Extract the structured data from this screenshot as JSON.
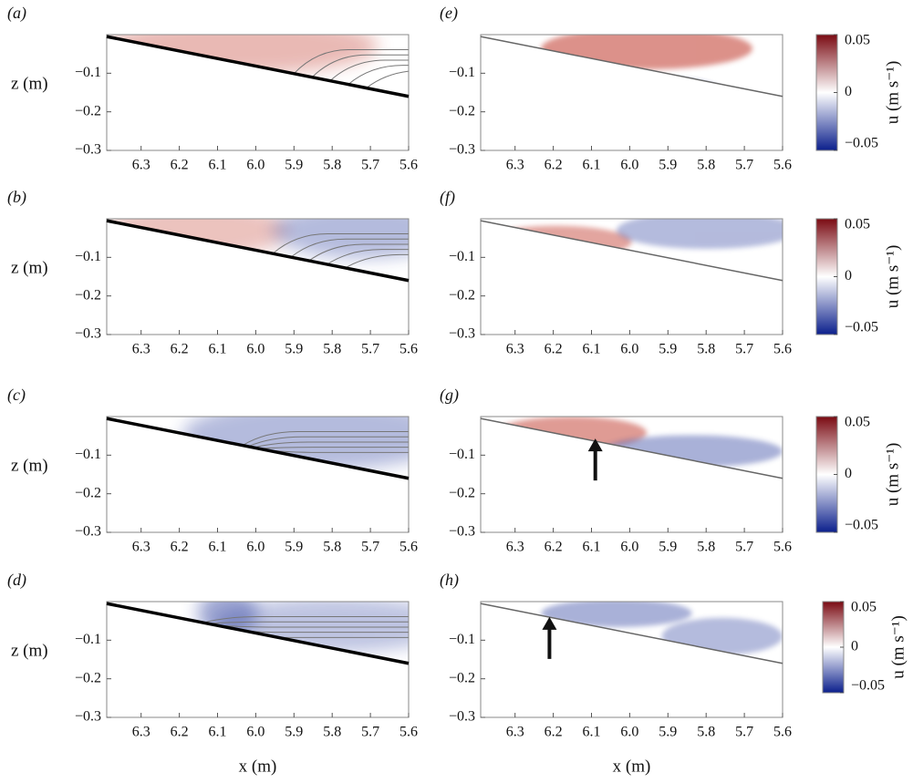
{
  "chart_data": [
    {
      "type": "field",
      "panel": "(a)",
      "ylabel": "z (m)",
      "xlim": [
        6.39,
        5.6
      ],
      "ylim": [
        -0.3,
        0
      ],
      "xticks": [
        6.3,
        6.2,
        6.1,
        {
          "value": 6,
          "label": "6.0"
        },
        5.9,
        5.8,
        5.7,
        5.6
      ],
      "yticks": [
        {
          "value": -0.3,
          "label": "−0.3"
        },
        {
          "value": -0.2,
          "label": "−0.2"
        },
        {
          "value": -0.1,
          "label": "−0.1"
        }
      ],
      "bed": {
        "x": [
          6.39,
          5.6
        ],
        "z": [
          -0.005,
          -0.16
        ],
        "color": "#000000"
      }
    },
    {
      "type": "field",
      "panel": "(b)",
      "ylabel": "z (m)",
      "xlim": [
        6.39,
        5.6
      ],
      "ylim": [
        -0.3,
        0
      ],
      "xticks": [
        6.3,
        6.2,
        6.1,
        {
          "value": 6,
          "label": "6.0"
        },
        5.9,
        5.8,
        5.7,
        5.6
      ],
      "yticks": [
        {
          "value": -0.3,
          "label": "−0.3"
        },
        {
          "value": -0.2,
          "label": "−0.2"
        },
        {
          "value": -0.1,
          "label": "−0.1"
        }
      ],
      "bed": {
        "x": [
          6.39,
          5.6
        ],
        "z": [
          -0.005,
          -0.16
        ],
        "color": "#000000"
      }
    },
    {
      "type": "field",
      "panel": "(c)",
      "ylabel": "z (m)",
      "xlim": [
        6.39,
        5.6
      ],
      "ylim": [
        -0.3,
        0
      ],
      "xticks": [
        6.3,
        6.2,
        6.1,
        {
          "value": 6,
          "label": "6.0"
        },
        5.9,
        5.8,
        5.7,
        5.6
      ],
      "yticks": [
        {
          "value": -0.3,
          "label": "−0.3"
        },
        {
          "value": -0.2,
          "label": "−0.2"
        },
        {
          "value": -0.1,
          "label": "−0.1"
        }
      ],
      "bed": {
        "x": [
          6.39,
          5.6
        ],
        "z": [
          -0.005,
          -0.16
        ],
        "color": "#000000"
      }
    },
    {
      "type": "field",
      "panel": "(d)",
      "ylabel": "z (m)",
      "xlabel": "x (m)",
      "xlim": [
        6.39,
        5.6
      ],
      "ylim": [
        -0.3,
        0
      ],
      "xticks": [
        6.3,
        6.2,
        6.1,
        {
          "value": 6,
          "label": "6.0"
        },
        5.9,
        5.8,
        5.7,
        5.6
      ],
      "yticks": [
        {
          "value": -0.3,
          "label": "−0.3"
        },
        {
          "value": -0.2,
          "label": "−0.2"
        },
        {
          "value": -0.1,
          "label": "−0.1"
        }
      ],
      "bed": {
        "x": [
          6.39,
          5.6
        ],
        "z": [
          -0.005,
          -0.16
        ],
        "color": "#000000"
      }
    },
    {
      "type": "field",
      "panel": "(e)",
      "xlim": [
        6.39,
        5.6
      ],
      "ylim": [
        -0.3,
        0
      ],
      "xticks": [
        6.3,
        6.2,
        6.1,
        {
          "value": 6,
          "label": "6.0"
        },
        5.9,
        5.8,
        5.7,
        5.6
      ],
      "yticks": [
        {
          "value": -0.3,
          "label": "−0.3"
        },
        {
          "value": -0.2,
          "label": "−0.2"
        },
        {
          "value": -0.1,
          "label": "−0.1"
        }
      ],
      "bed": {
        "x": [
          6.39,
          5.6
        ],
        "z": [
          -0.005,
          -0.16
        ],
        "color": "#666666"
      },
      "colorbar": {
        "label": "u (m s⁻¹)",
        "lim": [
          -0.05,
          0.05
        ],
        "ticks": [
          {
            "value": -0.05,
            "label": "−0.05"
          },
          0,
          0.05
        ],
        "colors": [
          "#0b1f8c",
          "#ffffff",
          "#7a0a12"
        ]
      }
    },
    {
      "type": "field",
      "panel": "(f)",
      "xlim": [
        6.39,
        5.6
      ],
      "ylim": [
        -0.3,
        0
      ],
      "xticks": [
        6.3,
        6.2,
        6.1,
        {
          "value": 6,
          "label": "6.0"
        },
        5.9,
        5.8,
        5.7,
        5.6
      ],
      "yticks": [
        {
          "value": -0.3,
          "label": "−0.3"
        },
        {
          "value": -0.2,
          "label": "−0.2"
        },
        {
          "value": -0.1,
          "label": "−0.1"
        }
      ],
      "bed": {
        "x": [
          6.39,
          5.6
        ],
        "z": [
          -0.005,
          -0.16
        ],
        "color": "#666666"
      },
      "colorbar": {
        "label": "u (m s⁻¹)",
        "lim": [
          -0.05,
          0.05
        ],
        "ticks": [
          {
            "value": -0.05,
            "label": "−0.05"
          },
          0,
          0.05
        ],
        "colors": [
          "#0b1f8c",
          "#ffffff",
          "#7a0a12"
        ]
      }
    },
    {
      "type": "field",
      "panel": "(g)",
      "xlim": [
        6.39,
        5.6
      ],
      "ylim": [
        -0.3,
        0
      ],
      "xticks": [
        6.3,
        6.2,
        6.1,
        {
          "value": 6,
          "label": "6.0"
        },
        5.9,
        5.8,
        5.7,
        5.6
      ],
      "yticks": [
        {
          "value": -0.3,
          "label": "−0.3"
        },
        {
          "value": -0.2,
          "label": "−0.2"
        },
        {
          "value": -0.1,
          "label": "−0.1"
        }
      ],
      "bed": {
        "x": [
          6.39,
          5.6
        ],
        "z": [
          -0.005,
          -0.16
        ],
        "color": "#666666"
      },
      "arrow": {
        "x": 6.09,
        "z": -0.057
      },
      "colorbar": {
        "label": "u (m s⁻¹)",
        "lim": [
          -0.05,
          0.05
        ],
        "ticks": [
          {
            "value": -0.05,
            "label": "−0.05"
          },
          0,
          0.05
        ],
        "colors": [
          "#0b1f8c",
          "#ffffff",
          "#7a0a12"
        ]
      }
    },
    {
      "type": "field",
      "panel": "(h)",
      "xlabel": "x (m)",
      "xlim": [
        6.39,
        5.6
      ],
      "ylim": [
        -0.3,
        0
      ],
      "xticks": [
        6.3,
        6.2,
        6.1,
        {
          "value": 6,
          "label": "6.0"
        },
        5.9,
        5.8,
        5.7,
        5.6
      ],
      "yticks": [
        {
          "value": -0.3,
          "label": "−0.3"
        },
        {
          "value": -0.2,
          "label": "−0.2"
        },
        {
          "value": -0.1,
          "label": "−0.1"
        }
      ],
      "bed": {
        "x": [
          6.39,
          5.6
        ],
        "z": [
          -0.005,
          -0.16
        ],
        "color": "#666666"
      },
      "arrow": {
        "x": 6.21,
        "z": -0.04
      },
      "colorbar": {
        "label": "u (m s⁻¹)",
        "lim": [
          -0.05,
          0.05
        ],
        "ticks": [
          {
            "value": -0.05,
            "label": "−0.05"
          },
          0,
          0.05
        ],
        "colors": [
          "#0b1f8c",
          "#ffffff",
          "#7a0a12"
        ]
      }
    }
  ]
}
